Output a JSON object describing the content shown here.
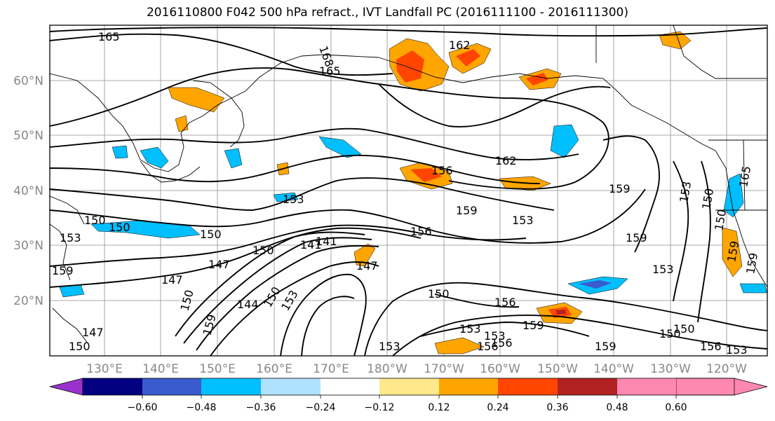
{
  "title": "2016110800 F042 500 hPa refract., IVT Landfall PC (2016111100 - 2016111300)",
  "lat_labels": [
    "60°N",
    "50°N",
    "40°N",
    "30°N",
    "20°N"
  ],
  "lon_labels": [
    "130°E",
    "140°E",
    "150°E",
    "160°E",
    "170°E",
    "180°W",
    "170°W",
    "160°W",
    "150°W",
    "140°W",
    "130°W",
    "120°W"
  ],
  "colorbar": {
    "colors": [
      "#9932cc",
      "#000080",
      "#3a5bcd",
      "#00bfff",
      "#b0e2ff",
      "#ffffff",
      "#ffe98a",
      "#ffa500",
      "#ff4500",
      "#b22222",
      "#ff88b0"
    ],
    "ticks": [
      "−0.60",
      "−0.48",
      "−0.36",
      "−0.24",
      "−0.12",
      "0.12",
      "0.24",
      "0.36",
      "0.48",
      "0.60"
    ]
  },
  "contour_labels": [
    "165",
    "168",
    "162",
    "165",
    "162",
    "156",
    "153",
    "150",
    "147",
    "150",
    "144",
    "141",
    "147",
    "156",
    "159",
    "153",
    "159",
    "159",
    "153",
    "150",
    "150",
    "153",
    "159",
    "156",
    "156",
    "159",
    "153",
    "150",
    "147",
    "150",
    "159",
    "165",
    "150",
    "150",
    "159",
    "150",
    "156",
    "153",
    "150",
    "153",
    "159",
    "153",
    "153",
    "153",
    "150",
    "147",
    "150",
    "141",
    "159",
    "156"
  ]
}
